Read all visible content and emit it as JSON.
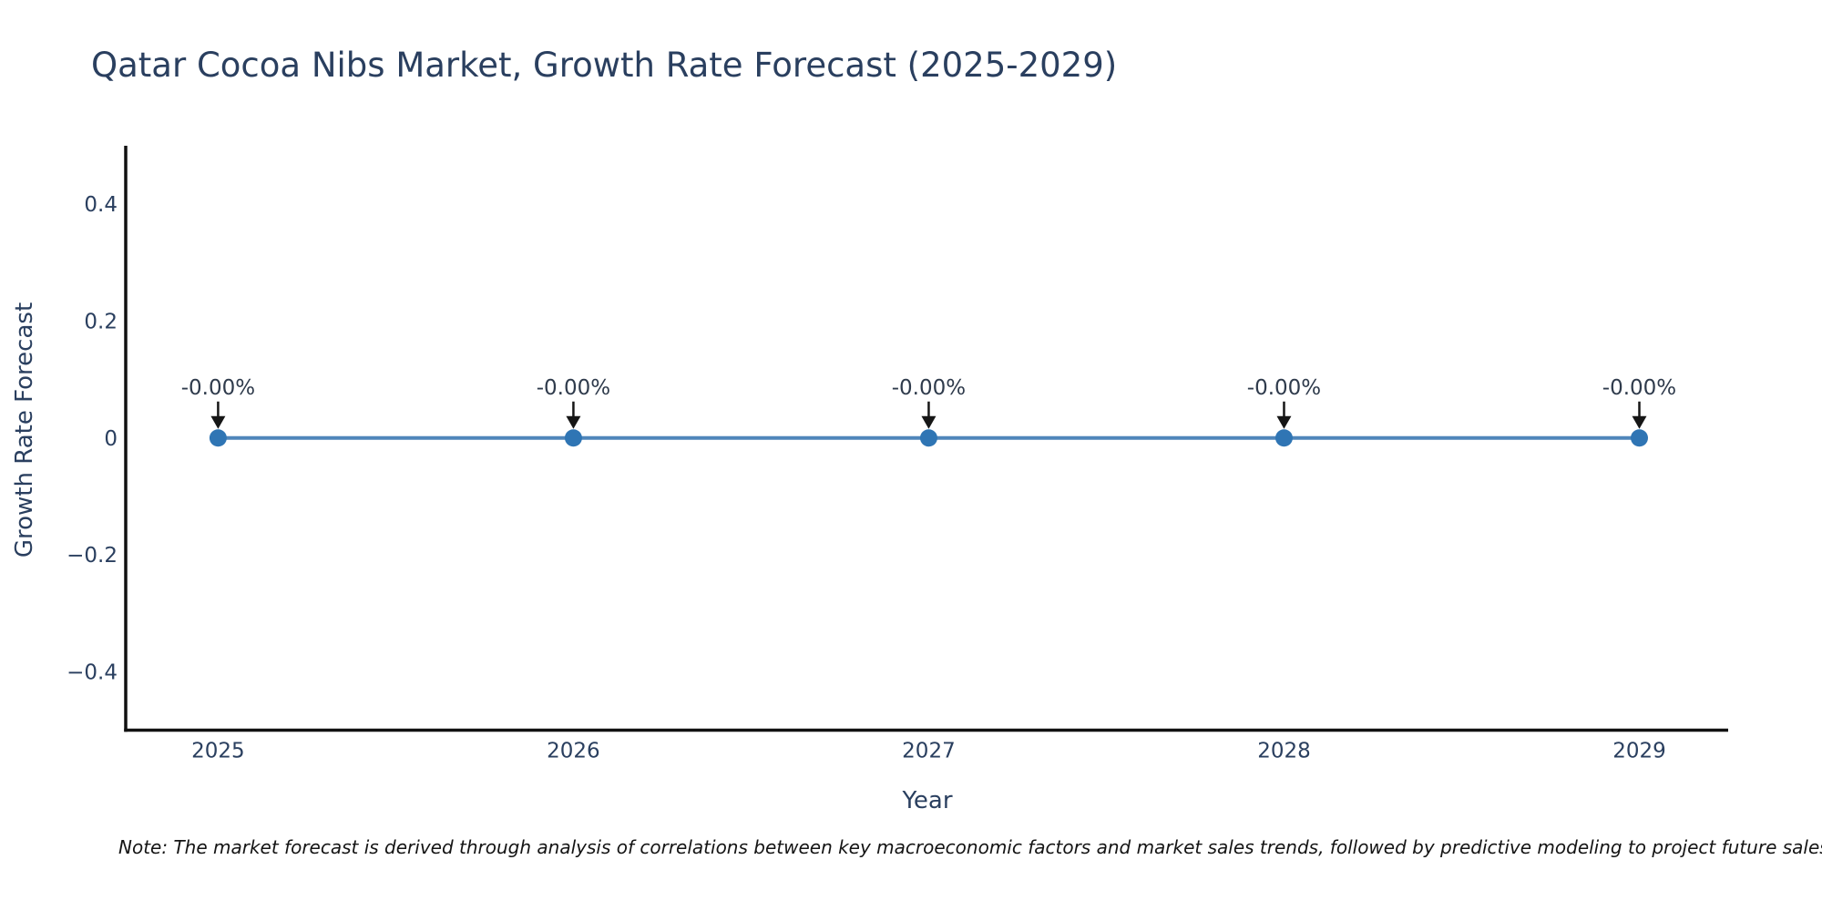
{
  "page": {
    "background": "#ffffff"
  },
  "chart_data": {
    "type": "line",
    "title": "Qatar Cocoa Nibs Market, Growth Rate Forecast (2025-2029)",
    "xlabel": "Year",
    "ylabel": "Growth Rate Forecast",
    "x": [
      2025,
      2026,
      2027,
      2028,
      2029
    ],
    "series": [
      {
        "name": "Growth Rate Forecast",
        "values": [
          0,
          0,
          0,
          0,
          0
        ]
      }
    ],
    "point_labels": [
      "-0.00%",
      "-0.00%",
      "-0.00%",
      "-0.00%",
      "-0.00%"
    ],
    "x_tick_labels": [
      "2025",
      "2026",
      "2027",
      "2028",
      "2029"
    ],
    "y_tick_values": [
      0.4,
      0.2,
      0,
      -0.2,
      -0.4
    ],
    "y_tick_labels": [
      "0.4",
      "0.2",
      "0",
      "−0.2",
      "−0.4"
    ],
    "xlim": [
      2024.74,
      2029.25
    ],
    "ylim": [
      -0.5,
      0.5
    ],
    "grid": false,
    "legend": false,
    "annotations": "downward black arrow from each point label to its marker",
    "colors": {
      "line": "#4f86ba",
      "marker": "#2f75b4",
      "axis": "#111111",
      "tick_text": "#2a3f5f",
      "annotation_text": "#2f3b4c",
      "arrow": "#161616",
      "title_text": "#2a3f5f",
      "background": "#ffffff"
    },
    "note": "Note: The market forecast is derived through analysis of correlations between key macroeconomic factors and market sales trends, followed by predictive modeling to project future sales"
  }
}
